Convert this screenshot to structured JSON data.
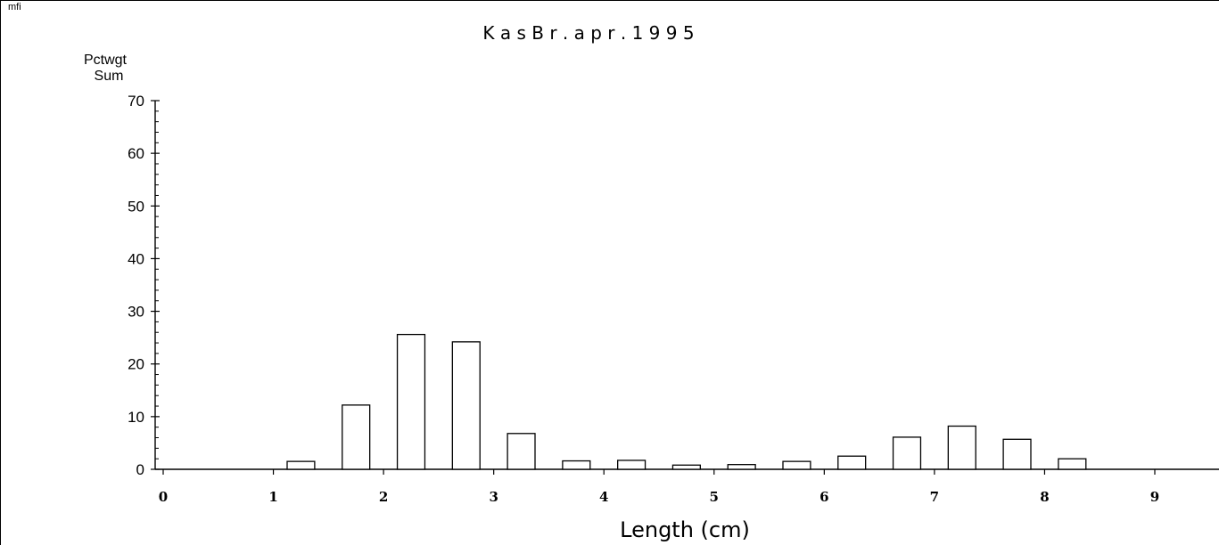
{
  "corner_label": "mfi",
  "chart_data": {
    "type": "bar",
    "title": "K a s   B r .     a p r .   1 9 9 5",
    "ylabel_line1": "Pctwgt",
    "ylabel_line2": "Sum",
    "xlabel": "Length (cm)",
    "ylim": [
      0,
      70
    ],
    "xlim": [
      0,
      9
    ],
    "y_ticks": [
      0,
      10,
      20,
      30,
      40,
      50,
      60,
      70
    ],
    "x_ticks": [
      0,
      1,
      2,
      3,
      4,
      5,
      6,
      7,
      8,
      9
    ],
    "bin_width": 0.5,
    "bar_width_fraction": 0.5,
    "grid": false,
    "x": [
      0.25,
      0.75,
      1.25,
      1.75,
      2.25,
      2.75,
      3.25,
      3.75,
      4.25,
      4.75,
      5.25,
      5.75,
      6.25,
      6.75,
      7.25,
      7.75,
      8.25,
      8.75
    ],
    "values": [
      0,
      0,
      1.5,
      12.2,
      25.6,
      24.2,
      6.8,
      1.6,
      1.7,
      0.8,
      0.9,
      1.5,
      2.5,
      6.1,
      8.2,
      5.7,
      2.0,
      0
    ],
    "colors": {
      "bar_fill": "#ffffff",
      "bar_stroke": "#000000",
      "axis": "#000000"
    }
  }
}
